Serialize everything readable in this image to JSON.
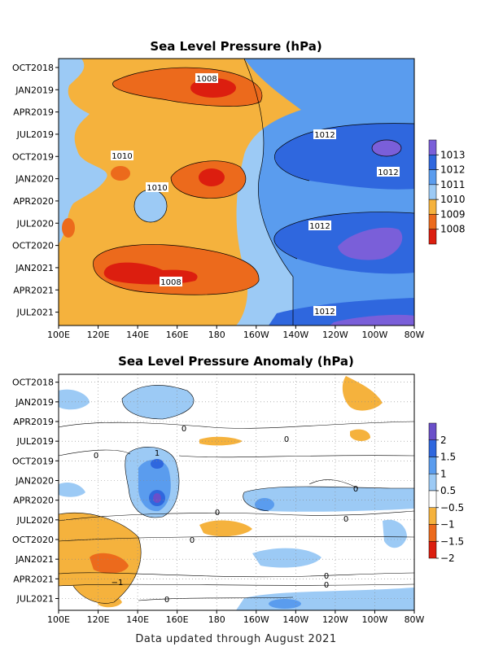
{
  "footer": "Data updated through August 2021",
  "chart_data": [
    {
      "type": "heatmap",
      "title": "Sea Level Pressure (hPa)",
      "x_ticks": [
        "100E",
        "120E",
        "140E",
        "160E",
        "180",
        "160W",
        "140W",
        "120W",
        "100W",
        "80W"
      ],
      "y_ticks": [
        "OCT2018",
        "JAN2019",
        "APR2019",
        "JUL2019",
        "OCT2019",
        "JAN2020",
        "APR2020",
        "JUL2020",
        "OCT2020",
        "JAN2021",
        "APR2021",
        "JUL2021"
      ],
      "colorbar": {
        "labels": [
          "1013",
          "1012",
          "1011",
          "1010",
          "1009",
          "1008"
        ],
        "colors": [
          "#7a5fd9",
          "#2f67de",
          "#5a9cee",
          "#9ccaf5",
          "#f5b23d",
          "#ec6a1c",
          "#dc1e0f"
        ]
      },
      "contour_labels": [
        "1008",
        "1010",
        "1010",
        "1012",
        "1012",
        "1012",
        "1008",
        "1012"
      ]
    },
    {
      "type": "heatmap",
      "title": "Sea Level Pressure Anomaly (hPa)",
      "x_ticks": [
        "100E",
        "120E",
        "140E",
        "160E",
        "180",
        "160W",
        "140W",
        "120W",
        "100W",
        "80W"
      ],
      "y_ticks": [
        "OCT2018",
        "JAN2019",
        "APR2019",
        "JUL2019",
        "OCT2019",
        "JAN2020",
        "APR2020",
        "JUL2020",
        "OCT2020",
        "JAN2021",
        "APR2021",
        "JUL2021"
      ],
      "grid": true,
      "colorbar": {
        "labels": [
          "2",
          "1.5",
          "1",
          "0.5",
          "−0.5",
          "−1",
          "−1.5",
          "−2"
        ],
        "colors": [
          "#6a4fc9",
          "#2f67de",
          "#5a9cee",
          "#9ccaf5",
          "#ffffff",
          "#f5b23d",
          "#ec6a1c",
          "#dc1e0f"
        ]
      },
      "contour_labels": [
        "1",
        "0",
        "0",
        "0",
        "0",
        "0",
        "0",
        "0",
        "0",
        "0",
        "0",
        "−1"
      ]
    }
  ]
}
